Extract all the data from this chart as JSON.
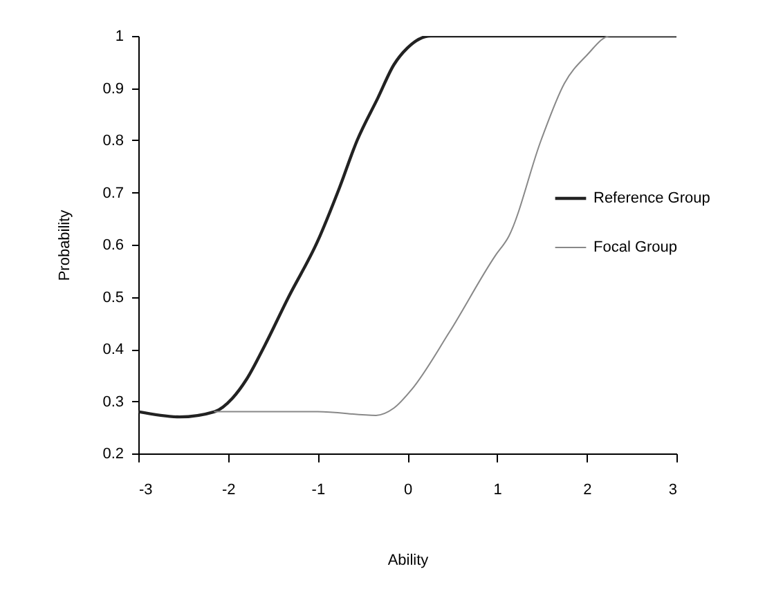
{
  "chart_data": {
    "type": "line",
    "xlabel": "Ability",
    "ylabel": "Probability",
    "xlim": [
      -3,
      3
    ],
    "xticks": [
      -3,
      -2,
      -1,
      0,
      1,
      2,
      3
    ],
    "ylim": [
      0.2,
      1
    ],
    "yticks": [
      0.2,
      0.3,
      0.4,
      0.5,
      0.6,
      0.7,
      0.8,
      0.9,
      1
    ],
    "grid": false,
    "legend": "right",
    "series": [
      {
        "name": "Reference Group",
        "color": "#222222",
        "x": [
          -3,
          -2.54,
          -2.15,
          -1.95,
          -1.79,
          -1.59,
          -1.33,
          -1,
          -0.76,
          -0.56,
          -0.33,
          -0.15,
          0,
          0.26,
          0.51,
          0.87,
          1.23,
          2,
          3
        ],
        "values": [
          0.28,
          0.27,
          0.28,
          0.306,
          0.343,
          0.407,
          0.498,
          0.607,
          0.708,
          0.8,
          0.881,
          0.945,
          0.977,
          1,
          1,
          1,
          1,
          1,
          1
        ]
      },
      {
        "name": "Focal Group",
        "color": "#888888",
        "x": [
          -2.15,
          -1,
          -0.35,
          -0.15,
          0.05,
          0.47,
          0.98,
          1.13,
          1.49,
          1.75,
          2,
          2.26,
          3
        ],
        "values": [
          0.28,
          0.28,
          0.273,
          0.287,
          0.323,
          0.433,
          0.579,
          0.616,
          0.8,
          0.909,
          0.963,
          1,
          1
        ]
      }
    ]
  }
}
